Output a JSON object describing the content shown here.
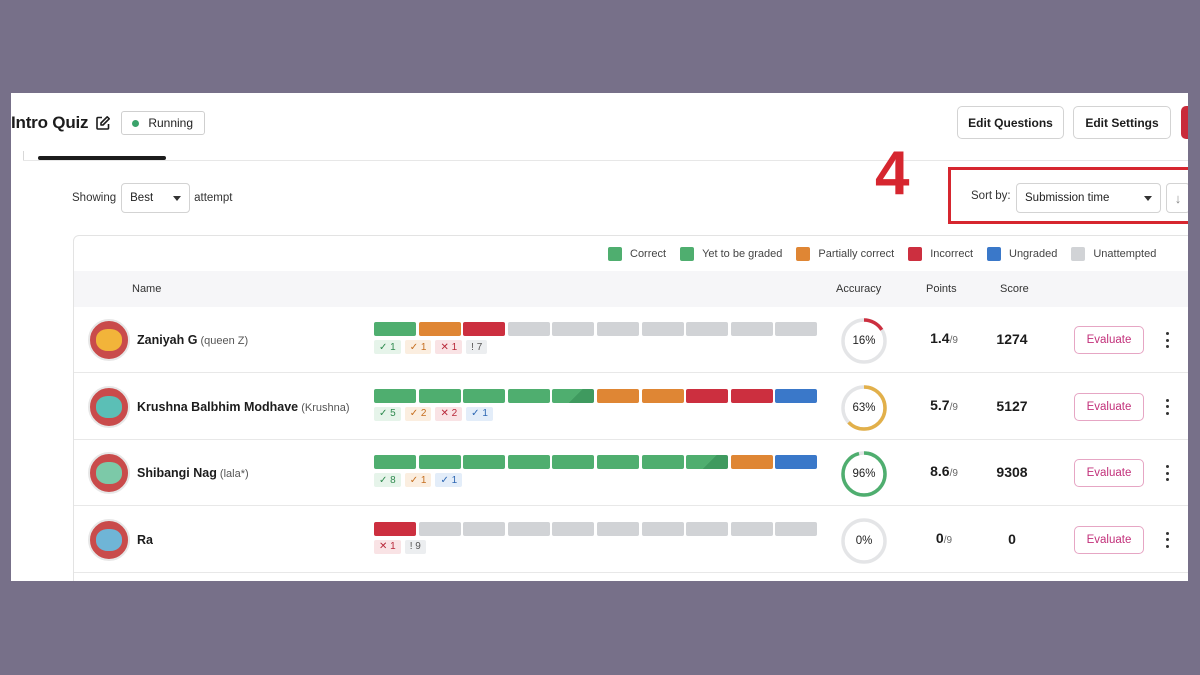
{
  "header": {
    "quiz_title": "Intro Quiz",
    "status": "Running",
    "status_color": "#3aa36b",
    "buttons": {
      "edit_questions": "Edit Questions",
      "edit_settings": "Edit Settings"
    }
  },
  "filters": {
    "showing_label": "Showing",
    "attempt_value": "Best",
    "attempt_suffix": "attempt",
    "sort_label": "Sort by:",
    "sort_value": "Submission time",
    "sort_direction_icon": "↓"
  },
  "annotation": {
    "number": "4"
  },
  "legend": [
    {
      "label": "Correct",
      "color": "#4fae6f"
    },
    {
      "label": "Yet to be graded",
      "color": "#4fae6f"
    },
    {
      "label": "Partially correct",
      "color": "#df8634"
    },
    {
      "label": "Incorrect",
      "color": "#cc2f3f"
    },
    {
      "label": "Ungraded",
      "color": "#3a78c9"
    },
    {
      "label": "Unattempted",
      "color": "#d1d3d6"
    }
  ],
  "table": {
    "columns": {
      "name": "Name",
      "accuracy": "Accuracy",
      "points": "Points",
      "score": "Score"
    },
    "evaluate_label": "Evaluate",
    "rows": [
      {
        "name": "Zaniyah G",
        "nickname": "(queen Z)",
        "avatar_bg": "#c94b4b",
        "avatar_fg": "#f2b43a",
        "segments": [
          "correct",
          "partial",
          "incorrect",
          "unattempted",
          "unattempted",
          "unattempted",
          "unattempted",
          "unattempted",
          "unattempted",
          "unattempted"
        ],
        "badges": [
          {
            "icon": "✓",
            "count": "1",
            "type": "correct"
          },
          {
            "icon": "✓",
            "count": "1",
            "type": "partial"
          },
          {
            "icon": "✕",
            "count": "1",
            "type": "incorrect"
          },
          {
            "icon": "!",
            "count": "7",
            "type": "unattempted"
          }
        ],
        "accuracy": 16,
        "accuracy_label": "16%",
        "accuracy_color": "#cc2f3f",
        "points": "1.4",
        "points_max": "/9",
        "score": "1274"
      },
      {
        "name": "Krushna Balbhim Modhave",
        "nickname": "(Krushna)",
        "avatar_bg": "#c94b4b",
        "avatar_fg": "#5bbfb6",
        "segments": [
          "correct",
          "correct",
          "correct",
          "correct",
          "graded",
          "partial",
          "partial",
          "incorrect",
          "incorrect",
          "ungraded"
        ],
        "badges": [
          {
            "icon": "✓",
            "count": "5",
            "type": "correct"
          },
          {
            "icon": "✓",
            "count": "2",
            "type": "partial"
          },
          {
            "icon": "✕",
            "count": "2",
            "type": "incorrect"
          },
          {
            "icon": "✓",
            "count": "1",
            "type": "ungraded"
          }
        ],
        "accuracy": 63,
        "accuracy_label": "63%",
        "accuracy_color": "#e2b04a",
        "points": "5.7",
        "points_max": "/9",
        "score": "5127"
      },
      {
        "name": "Shibangi Nag",
        "nickname": "(lala*)",
        "avatar_bg": "#c94b4b",
        "avatar_fg": "#7cc9a8",
        "segments": [
          "correct",
          "correct",
          "correct",
          "correct",
          "correct",
          "correct",
          "correct",
          "graded",
          "partial",
          "ungraded"
        ],
        "badges": [
          {
            "icon": "✓",
            "count": "8",
            "type": "correct"
          },
          {
            "icon": "✓",
            "count": "1",
            "type": "partial"
          },
          {
            "icon": "✓",
            "count": "1",
            "type": "ungraded"
          }
        ],
        "accuracy": 96,
        "accuracy_label": "96%",
        "accuracy_color": "#4fae6f",
        "points": "8.6",
        "points_max": "/9",
        "score": "9308"
      },
      {
        "name": "Ra",
        "nickname": "",
        "avatar_bg": "#c94b4b",
        "avatar_fg": "#6fb5d6",
        "segments": [
          "incorrect",
          "unattempted",
          "unattempted",
          "unattempted",
          "unattempted",
          "unattempted",
          "unattempted",
          "unattempted",
          "unattempted",
          "unattempted"
        ],
        "badges": [
          {
            "icon": "✕",
            "count": "1",
            "type": "incorrect"
          },
          {
            "icon": "!",
            "count": "9",
            "type": "unattempted"
          }
        ],
        "accuracy": 0,
        "accuracy_label": "0%",
        "accuracy_color": "#cc2f3f",
        "points": "0",
        "points_max": "/9",
        "score": "0"
      }
    ]
  },
  "colors": {
    "correct": "#4fae6f",
    "graded": "#4fae6f",
    "partial": "#df8634",
    "incorrect": "#cc2f3f",
    "ungraded": "#3a78c9",
    "unattempted": "#d1d3d6"
  },
  "badge_styles": {
    "correct": {
      "bg": "#e6f4ea",
      "fg": "#2f8a4f"
    },
    "partial": {
      "bg": "#fbeee0",
      "fg": "#c56e1f"
    },
    "incorrect": {
      "bg": "#f9e3e5",
      "fg": "#b8283a"
    },
    "ungraded": {
      "bg": "#e3edf9",
      "fg": "#2d67b3"
    },
    "unattempted": {
      "bg": "#eceef0",
      "fg": "#555"
    }
  }
}
